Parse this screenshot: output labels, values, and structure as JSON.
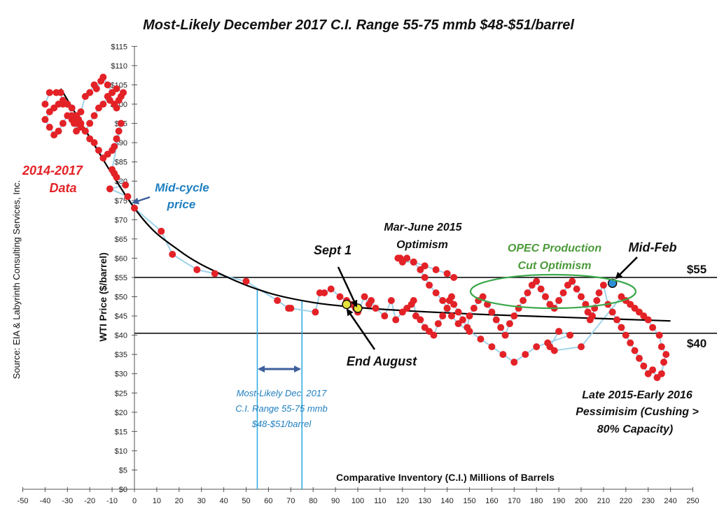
{
  "chart_data": {
    "type": "scatter",
    "title": "Most-Likely December 2017 C.I. Range 55-75 mmb $48-$51/barrel",
    "xlabel": "Comparative Inventory (C.I.) Millions of Barrels",
    "ylabel": "WTI Price ($/barrel)",
    "source": "Source:  EIA & Labyrinth Consulting Services, Inc.",
    "xlim": [
      -50,
      250
    ],
    "ylim": [
      0,
      115
    ],
    "x_ticks": [
      -50,
      -40,
      -30,
      -20,
      -10,
      0,
      10,
      20,
      30,
      40,
      50,
      60,
      70,
      80,
      90,
      100,
      110,
      120,
      130,
      140,
      150,
      160,
      170,
      180,
      190,
      200,
      210,
      220,
      230,
      240,
      250
    ],
    "x_tick_labels": [
      "-50",
      "-40",
      "-30",
      "-20",
      "-10",
      "0",
      "10",
      "20",
      "30",
      "40",
      "50",
      "60",
      "70",
      "80",
      "90",
      "100",
      "110",
      "120",
      "130",
      "140",
      "150",
      "160",
      "170",
      "180",
      "190",
      "200",
      "210",
      "220",
      "230",
      "240",
      "250"
    ],
    "y_ticks": [
      0,
      5,
      10,
      15,
      20,
      25,
      30,
      35,
      40,
      45,
      50,
      55,
      60,
      65,
      70,
      75,
      80,
      85,
      90,
      95,
      100,
      105,
      110,
      115
    ],
    "y_tick_labels": [
      "$0",
      "$5",
      "$10",
      "$15",
      "$20",
      "$25",
      "$30",
      "$35",
      "$40",
      "$45",
      "$50",
      "$55",
      "$60",
      "$65",
      "$70",
      "$75",
      "$80",
      "$85",
      "$90",
      "$95",
      "$100",
      "$105",
      "$110",
      "$115"
    ],
    "grid": false,
    "series": [
      {
        "x": [
          -40,
          -38,
          -35,
          -33,
          -32,
          -30,
          -28,
          -27,
          -26,
          -25,
          -24,
          -22,
          -20,
          -18,
          -17,
          -15,
          -14,
          -12,
          -10,
          -11,
          -9,
          -8,
          -7,
          -6,
          -5,
          -8,
          -10,
          -12,
          -14,
          -16,
          -18,
          -20,
          -22,
          -24,
          -26,
          -28,
          -30,
          -32,
          -34,
          -36,
          -38,
          -40,
          -38,
          -36,
          -34,
          -32,
          -30,
          -28,
          -26,
          -24,
          -22,
          -20,
          -18,
          -16,
          -14,
          -12,
          -10,
          -9,
          -8,
          -7,
          -6,
          -10,
          -9,
          -8,
          -4,
          -11,
          -3,
          0,
          12,
          17,
          28,
          36,
          50,
          64,
          69,
          70,
          81,
          83,
          85,
          88,
          92,
          95,
          97,
          99,
          100,
          103,
          105,
          106,
          108,
          112,
          115,
          117,
          120,
          122,
          124,
          125,
          126,
          128,
          130,
          132,
          134,
          136,
          138,
          140,
          141,
          142,
          143,
          145,
          147,
          149,
          150,
          152,
          154,
          156,
          158,
          160,
          162,
          164,
          166,
          168,
          170,
          172,
          174,
          176,
          178,
          180,
          182,
          184,
          186,
          188,
          190,
          192,
          194,
          196,
          198,
          200,
          202,
          203,
          204,
          205,
          206,
          207,
          208,
          210,
          212,
          214,
          216,
          218,
          220,
          222,
          224,
          226,
          228,
          230,
          232,
          234,
          236,
          237,
          238,
          236,
          235,
          232,
          230,
          228,
          226,
          224,
          222,
          220,
          218,
          200,
          188,
          186,
          190,
          195,
          185,
          180,
          175,
          170,
          165,
          160,
          155,
          150,
          145,
          142,
          140,
          138,
          135,
          132,
          130,
          128,
          125,
          122,
          119,
          118,
          120,
          125,
          130,
          135,
          140,
          143
        ],
        "y": [
          100,
          103,
          103,
          103,
          100,
          100,
          97,
          95,
          93,
          96,
          98,
          102,
          103,
          105,
          104,
          106,
          107,
          105,
          103,
          101,
          100,
          99,
          101,
          102,
          103,
          104,
          103,
          102,
          100,
          99,
          97,
          95,
          93,
          94,
          95,
          96,
          97,
          95,
          93,
          92,
          94,
          96,
          98,
          99,
          100,
          101,
          100,
          99,
          97,
          95,
          93,
          91,
          90,
          88,
          86,
          87,
          88,
          89,
          91,
          93,
          95,
          83,
          82,
          81,
          79,
          78,
          76,
          73,
          67,
          61,
          57,
          56,
          54,
          49,
          47,
          47,
          46,
          51,
          51,
          52,
          50,
          49,
          48,
          47,
          46,
          50,
          48,
          49,
          47,
          45,
          49,
          44,
          46,
          47,
          48,
          49,
          45,
          44,
          42,
          41,
          40,
          43,
          45,
          47,
          49,
          50,
          48,
          46,
          44,
          42,
          45,
          47,
          49,
          50,
          48,
          46,
          44,
          42,
          40,
          43,
          45,
          47,
          49,
          51,
          53,
          54,
          52,
          50,
          48,
          47,
          49,
          51,
          53,
          54,
          52,
          50,
          48,
          46,
          44,
          45,
          47,
          49,
          51,
          53,
          48,
          46,
          44,
          42,
          40,
          38,
          36,
          34,
          32,
          30,
          31,
          29,
          30,
          33,
          35,
          37,
          40,
          42,
          44,
          45,
          46,
          47,
          48,
          49,
          50,
          37,
          36,
          37,
          41,
          40,
          38,
          37,
          35,
          33,
          35,
          37,
          39,
          41,
          43,
          45,
          47,
          49,
          51,
          53,
          55,
          57,
          59,
          60,
          60,
          60,
          59,
          59,
          58,
          57,
          56,
          55
        ]
      }
    ],
    "highlight_points": [
      {
        "x": 95,
        "y": 48,
        "color": "#e8e23a"
      },
      {
        "x": 100,
        "y": 47,
        "color": "#e8e23a"
      },
      {
        "x": 214,
        "y": 53.5,
        "color": "#2b8ed6"
      }
    ],
    "trend_curve": {
      "x": [
        -33,
        0,
        20,
        40,
        60,
        80,
        100,
        120,
        140,
        160,
        180,
        200,
        220,
        240
      ],
      "y": [
        104,
        73,
        62,
        55.5,
        51,
        48.5,
        47.2,
        46.4,
        45.8,
        45.3,
        44.9,
        44.5,
        44.1,
        43.7
      ]
    },
    "reference_lines": [
      {
        "y": 55,
        "label": "$55"
      },
      {
        "y": 40.5,
        "label": "$40"
      }
    ],
    "range_lines": {
      "x": [
        55,
        75
      ]
    },
    "annotations": {
      "data_label_1": "2014-2017",
      "data_label_2": "Data",
      "midcycle_1": "Mid-cycle",
      "midcycle_2": "price",
      "sept": "Sept 1",
      "end_august": "End August",
      "marjune_1": "Mar-June 2015",
      "marjune_2": "Optimism",
      "opec_1": "OPEC Production",
      "opec_2": "Cut Optimism",
      "midfeb": "Mid-Feb",
      "late_1": "Late 2015-Early 2016",
      "late_2": "Pessimisim (Cushing >",
      "late_3": "80% Capacity)",
      "range_1": "Most-Likely Dec. 2017",
      "range_2": "C.I. Range 55-75 mmb",
      "range_3": "$48-$51/barrel"
    },
    "colors": {
      "points": "#e32227",
      "path": "#9fd3ea",
      "trend": "#000000",
      "red_text": "#e32227",
      "blue_text": "#1f7fc0",
      "green_text": "#4b9a3a",
      "ellipse": "#3aa84a",
      "range_arrow": "#3d5f9c"
    }
  }
}
